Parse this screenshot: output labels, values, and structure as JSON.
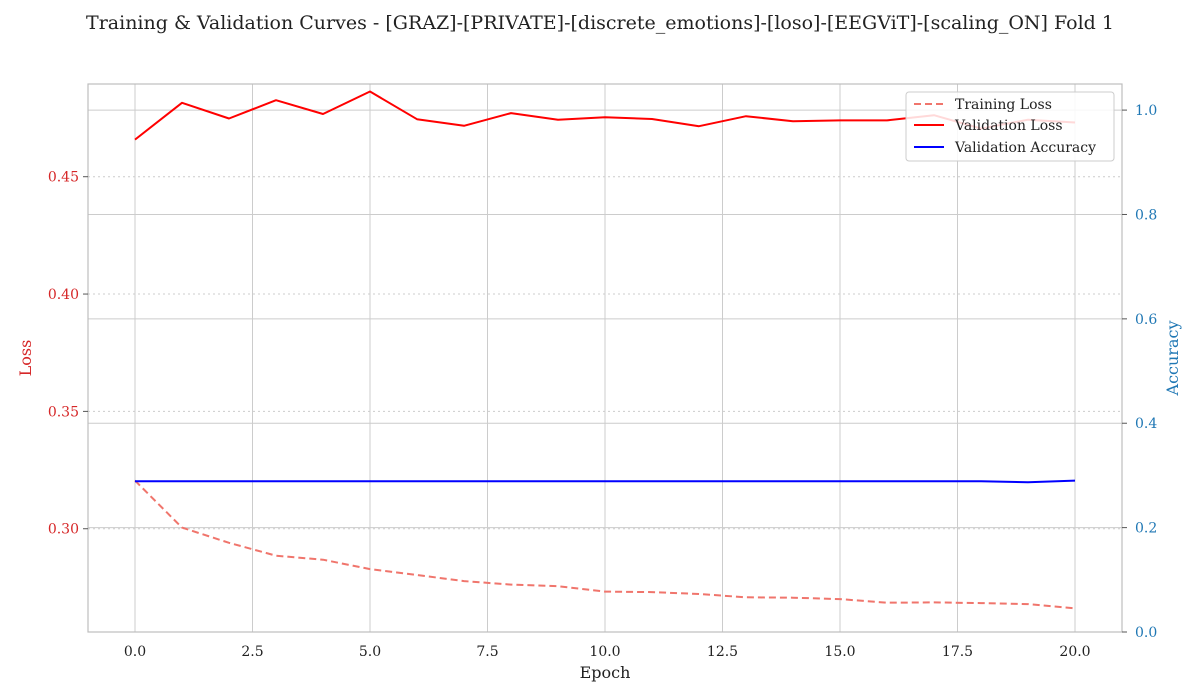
{
  "chart_data": {
    "type": "line",
    "title": "Training & Validation Curves - [GRAZ]-[PRIVATE]-[discrete_emotions]-[loso]-[EEGViT]-[scaling_ON] Fold 1",
    "xlabel": "Epoch",
    "ylabel_left": "Loss",
    "ylabel_right": "Accuracy",
    "xlim": [
      -1,
      21
    ],
    "ylim_left": [
      0.256,
      0.4895
    ],
    "ylim_right": [
      0,
      1.05
    ],
    "x_ticks": [
      "0.0",
      "2.5",
      "5.0",
      "7.5",
      "10.0",
      "12.5",
      "15.0",
      "17.5",
      "20.0"
    ],
    "y_left_ticks": [
      "0.30",
      "0.35",
      "0.40",
      "0.45"
    ],
    "y_right_ticks": [
      "0.0",
      "0.2",
      "0.4",
      "0.6",
      "0.8",
      "1.0"
    ],
    "grid": true,
    "legend_position": "top-right",
    "x": [
      0,
      1,
      2,
      3,
      4,
      5,
      6,
      7,
      8,
      9,
      10,
      11,
      12,
      13,
      14,
      15,
      16,
      17,
      18,
      19,
      20
    ],
    "series": [
      {
        "name": "Training Loss",
        "axis": "left",
        "style": "dashed",
        "color": "#f0756c",
        "values": [
          0.3205,
          0.3005,
          0.294,
          0.2885,
          0.2868,
          0.2828,
          0.2803,
          0.2777,
          0.2762,
          0.2755,
          0.2732,
          0.273,
          0.2722,
          0.2708,
          0.2706,
          0.27,
          0.2685,
          0.2686,
          0.2683,
          0.2679,
          0.2661
        ]
      },
      {
        "name": "Validation Loss",
        "axis": "left",
        "style": "solid",
        "color": "#ff0000",
        "values": [
          0.4658,
          0.4815,
          0.4748,
          0.4826,
          0.4767,
          0.4863,
          0.4745,
          0.4717,
          0.4771,
          0.4743,
          0.4753,
          0.4746,
          0.4715,
          0.4758,
          0.4736,
          0.474,
          0.474,
          0.4762,
          0.4705,
          0.4743,
          0.4731
        ]
      },
      {
        "name": "Validation Accuracy",
        "axis": "right",
        "style": "solid",
        "color": "#0000ff",
        "values": [
          0.289,
          0.289,
          0.289,
          0.289,
          0.289,
          0.289,
          0.289,
          0.289,
          0.289,
          0.289,
          0.289,
          0.289,
          0.289,
          0.289,
          0.289,
          0.289,
          0.289,
          0.289,
          0.289,
          0.287,
          0.29
        ]
      }
    ],
    "colors": {
      "left_axis": "#d62728",
      "right_axis": "#1f77b4",
      "grid": "#cccccc",
      "frame": "#bdbdbd"
    }
  }
}
